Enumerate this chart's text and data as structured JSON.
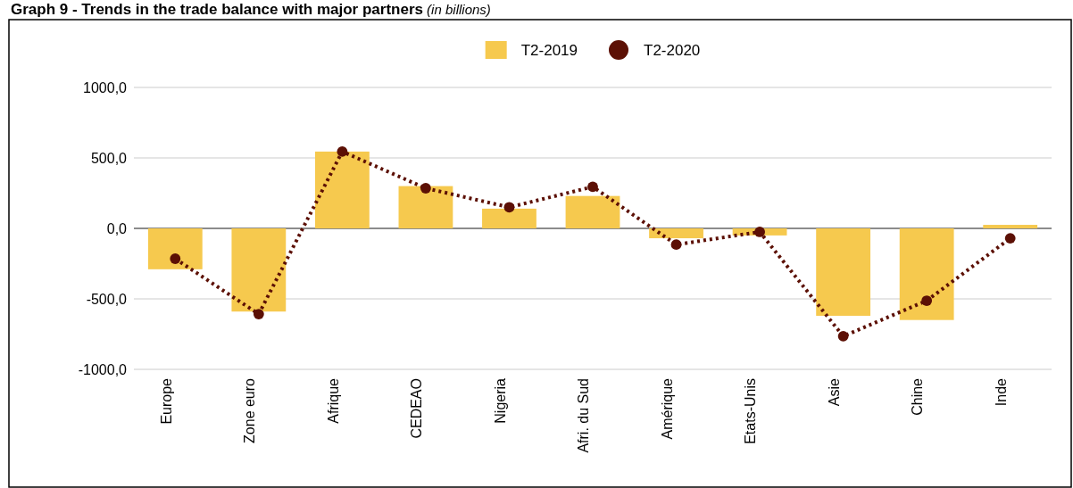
{
  "chart_data": {
    "type": "bar",
    "title": "Graph 9 - Trends in the trade balance with major partners",
    "subtitle": "(in billions)",
    "categories": [
      "Europe",
      "Zone euro",
      "Afrique",
      "CEDEAO",
      "Nigeria",
      "Afri. du Sud",
      "Amérique",
      "Etats-Unis",
      "Asie",
      "Chine",
      "Inde"
    ],
    "series": [
      {
        "name": "T2-2019",
        "color": "#f6c94e",
        "values": [
          -290,
          -590,
          545,
          300,
          140,
          230,
          -70,
          -50,
          -620,
          -650,
          25
        ]
      },
      {
        "name": "T2-2020",
        "type": "line",
        "color": "#5c1005",
        "marker": "circle",
        "line_style": "dotted",
        "values": [
          -215,
          -608,
          545,
          285,
          150,
          295,
          -115,
          -25,
          -765,
          -513,
          -70
        ]
      }
    ],
    "ylim": [
      -1000,
      1000
    ],
    "yticks": [
      {
        "value": -1000,
        "label": "-1000,0"
      },
      {
        "value": -500,
        "label": "-500,0"
      },
      {
        "value": 0,
        "label": "0,0"
      },
      {
        "value": 500,
        "label": "500,0"
      },
      {
        "value": 1000,
        "label": "1000,0"
      }
    ],
    "grid": "y",
    "legend": "top"
  }
}
